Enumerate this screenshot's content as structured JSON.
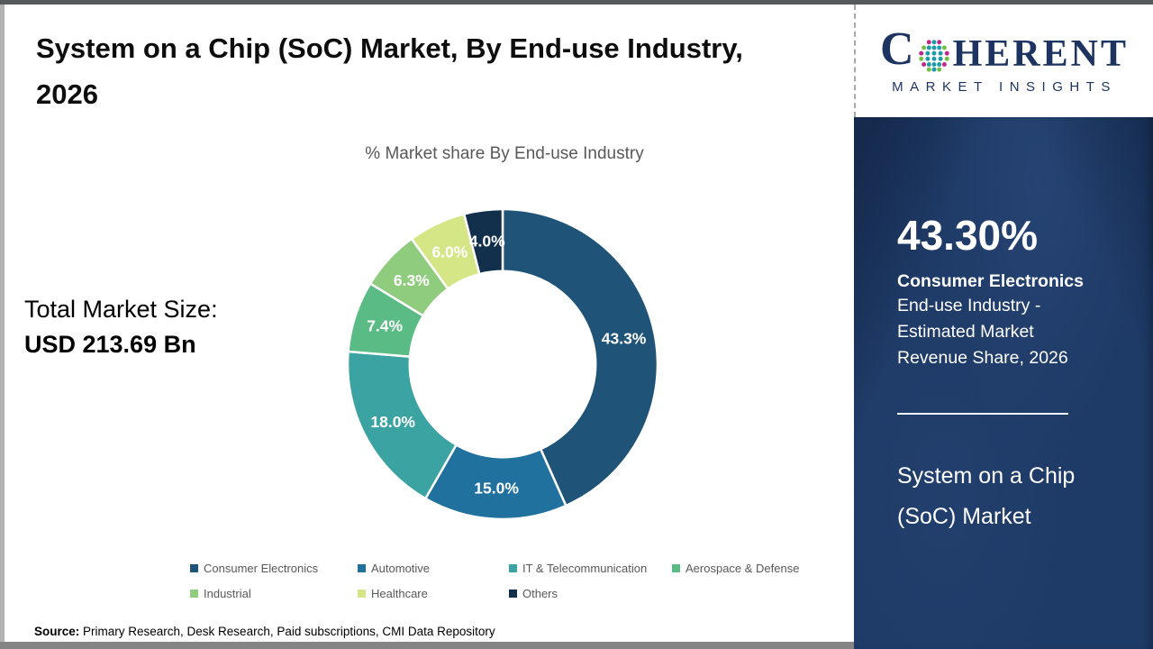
{
  "header": {
    "title": "System on a Chip (SoC) Market,  By End-use Industry, 2026"
  },
  "logo": {
    "letter_c": "C",
    "wordmark_rest": "HERENT",
    "subtitle": "MARKET INSIGHTS",
    "globe_icon": "dotted-globe",
    "navy": "#1d3461",
    "dot_teal": "#1d9ca8",
    "dot_green": "#72bf44",
    "dot_magenta": "#c2268e"
  },
  "total_market": {
    "label": "Total Market Size:",
    "value": "USD 213.69 Bn"
  },
  "chart_data": {
    "type": "pie",
    "subtype": "donut",
    "title": "% Market share  By End-use Industry",
    "start_angle_deg": 0,
    "direction": "clockwise",
    "hole_ratio": 0.6,
    "legend_position": "bottom",
    "categories": [
      "Consumer Electronics",
      "Automotive",
      "IT & Telecommunication",
      "Aerospace & Defense",
      "Industrial",
      "Healthcare",
      "Others"
    ],
    "values": [
      43.3,
      15.0,
      18.0,
      7.4,
      6.3,
      6.0,
      4.0
    ],
    "labels": [
      "43.3%",
      "15.0%",
      "18.0%",
      "7.4%",
      "6.3%",
      "6.0%",
      "4.0%"
    ],
    "colors": [
      "#1f5377",
      "#20719e",
      "#3ba3a2",
      "#5bbb85",
      "#8fcc7e",
      "#d5e687",
      "#122f4c"
    ]
  },
  "sidebar": {
    "bg": "#1e3a66",
    "stat_value": "43.30%",
    "stat_category": "Consumer Electronics",
    "stat_lines": [
      "End-use Industry -",
      "Estimated Market",
      "Revenue Share, 2026"
    ],
    "market_name_line1": "System on a Chip",
    "market_name_line2": "(SoC) Market"
  },
  "source": {
    "label": "Source:",
    "text": " Primary Research, Desk Research, Paid subscriptions, CMI Data Repository"
  }
}
